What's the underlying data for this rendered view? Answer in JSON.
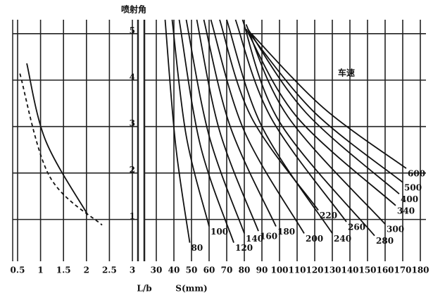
{
  "chart_data": [
    {
      "type": "line",
      "xlabel": "L/b",
      "xlim": [
        0.5,
        3
      ],
      "xticks": [
        0.5,
        1,
        1.5,
        2,
        2.5,
        3
      ],
      "ylim": [
        0.1,
        5.3
      ],
      "grid": true,
      "series": [
        {
          "color": "#111111",
          "linestyle": "solid",
          "x": [
            0.7,
            1.11,
            2.03
          ],
          "values": [
            4.36,
            2.7,
            1.1
          ]
        },
        {
          "color": "#111111",
          "linestyle": "dashed",
          "x": [
            0.55,
            1.19,
            2.34
          ],
          "values": [
            4.14,
            1.94,
            0.88
          ]
        }
      ]
    },
    {
      "type": "line",
      "ylabel": "喷射角",
      "xlabel": "S(mm)",
      "annotation": "车速",
      "xlim": [
        30,
        180
      ],
      "xticks": [
        30,
        40,
        50,
        60,
        70,
        80,
        90,
        100,
        110,
        120,
        130,
        140,
        150,
        160,
        170,
        180
      ],
      "ylim": [
        0.1,
        5.3
      ],
      "yticks": [
        1,
        2,
        3,
        4,
        5
      ],
      "grid": true,
      "series": [
        {
          "name": "80",
          "color": "#111111",
          "x": [
            35,
            41,
            49
          ],
          "values": [
            5.3,
            2.6,
            0.5
          ]
        },
        {
          "name": "100",
          "color": "#111111",
          "x": [
            39,
            47,
            60
          ],
          "values": [
            5.3,
            2.8,
            0.85
          ]
        },
        {
          "name": "120",
          "color": "#111111",
          "x": [
            43,
            55,
            74
          ],
          "values": [
            5.3,
            2.6,
            0.5
          ]
        },
        {
          "name": "140",
          "color": "#111111",
          "x": [
            47,
            60,
            80
          ],
          "values": [
            5.3,
            2.8,
            0.7
          ]
        },
        {
          "name": "160",
          "color": "#111111",
          "x": [
            53,
            66,
            88
          ],
          "values": [
            5.3,
            2.9,
            0.75
          ]
        },
        {
          "name": "180",
          "color": "#111111",
          "x": [
            57,
            72,
            98
          ],
          "values": [
            5.3,
            3.0,
            0.85
          ]
        },
        {
          "name": "200",
          "color": "#111111",
          "x": [
            61,
            80,
            114
          ],
          "values": [
            5.3,
            2.9,
            0.7
          ]
        },
        {
          "name": "220",
          "color": "#111111",
          "x": [
            66,
            84,
            122
          ],
          "values": [
            5.3,
            3.2,
            1.2
          ]
        },
        {
          "name": "240",
          "color": "#111111",
          "x": [
            70,
            90,
            130
          ],
          "values": [
            5.3,
            3.0,
            0.7
          ]
        },
        {
          "name": "260",
          "color": "#111111",
          "x": [
            75,
            95,
            138
          ],
          "values": [
            5.3,
            3.2,
            0.95
          ]
        },
        {
          "name": "280",
          "color": "#111111",
          "x": [
            79,
            100,
            154
          ],
          "values": [
            5.3,
            3.1,
            0.65
          ]
        },
        {
          "name": "300",
          "color": "#111111",
          "x": [
            81,
            105,
            160
          ],
          "values": [
            5.2,
            3.2,
            0.9
          ]
        },
        {
          "name": "340",
          "color": "#111111",
          "x": [
            81,
            110,
            166
          ],
          "values": [
            5.1,
            3.2,
            1.3
          ]
        },
        {
          "name": "400",
          "color": "#111111",
          "x": [
            82,
            115,
            168
          ],
          "values": [
            5.1,
            3.3,
            1.55
          ]
        },
        {
          "name": "500",
          "color": "#111111",
          "x": [
            83,
            120,
            170
          ],
          "values": [
            5.0,
            3.3,
            1.8
          ]
        },
        {
          "name": "600",
          "color": "#111111",
          "x": [
            84,
            125,
            172
          ],
          "values": [
            5.0,
            3.4,
            2.1
          ]
        }
      ]
    }
  ]
}
